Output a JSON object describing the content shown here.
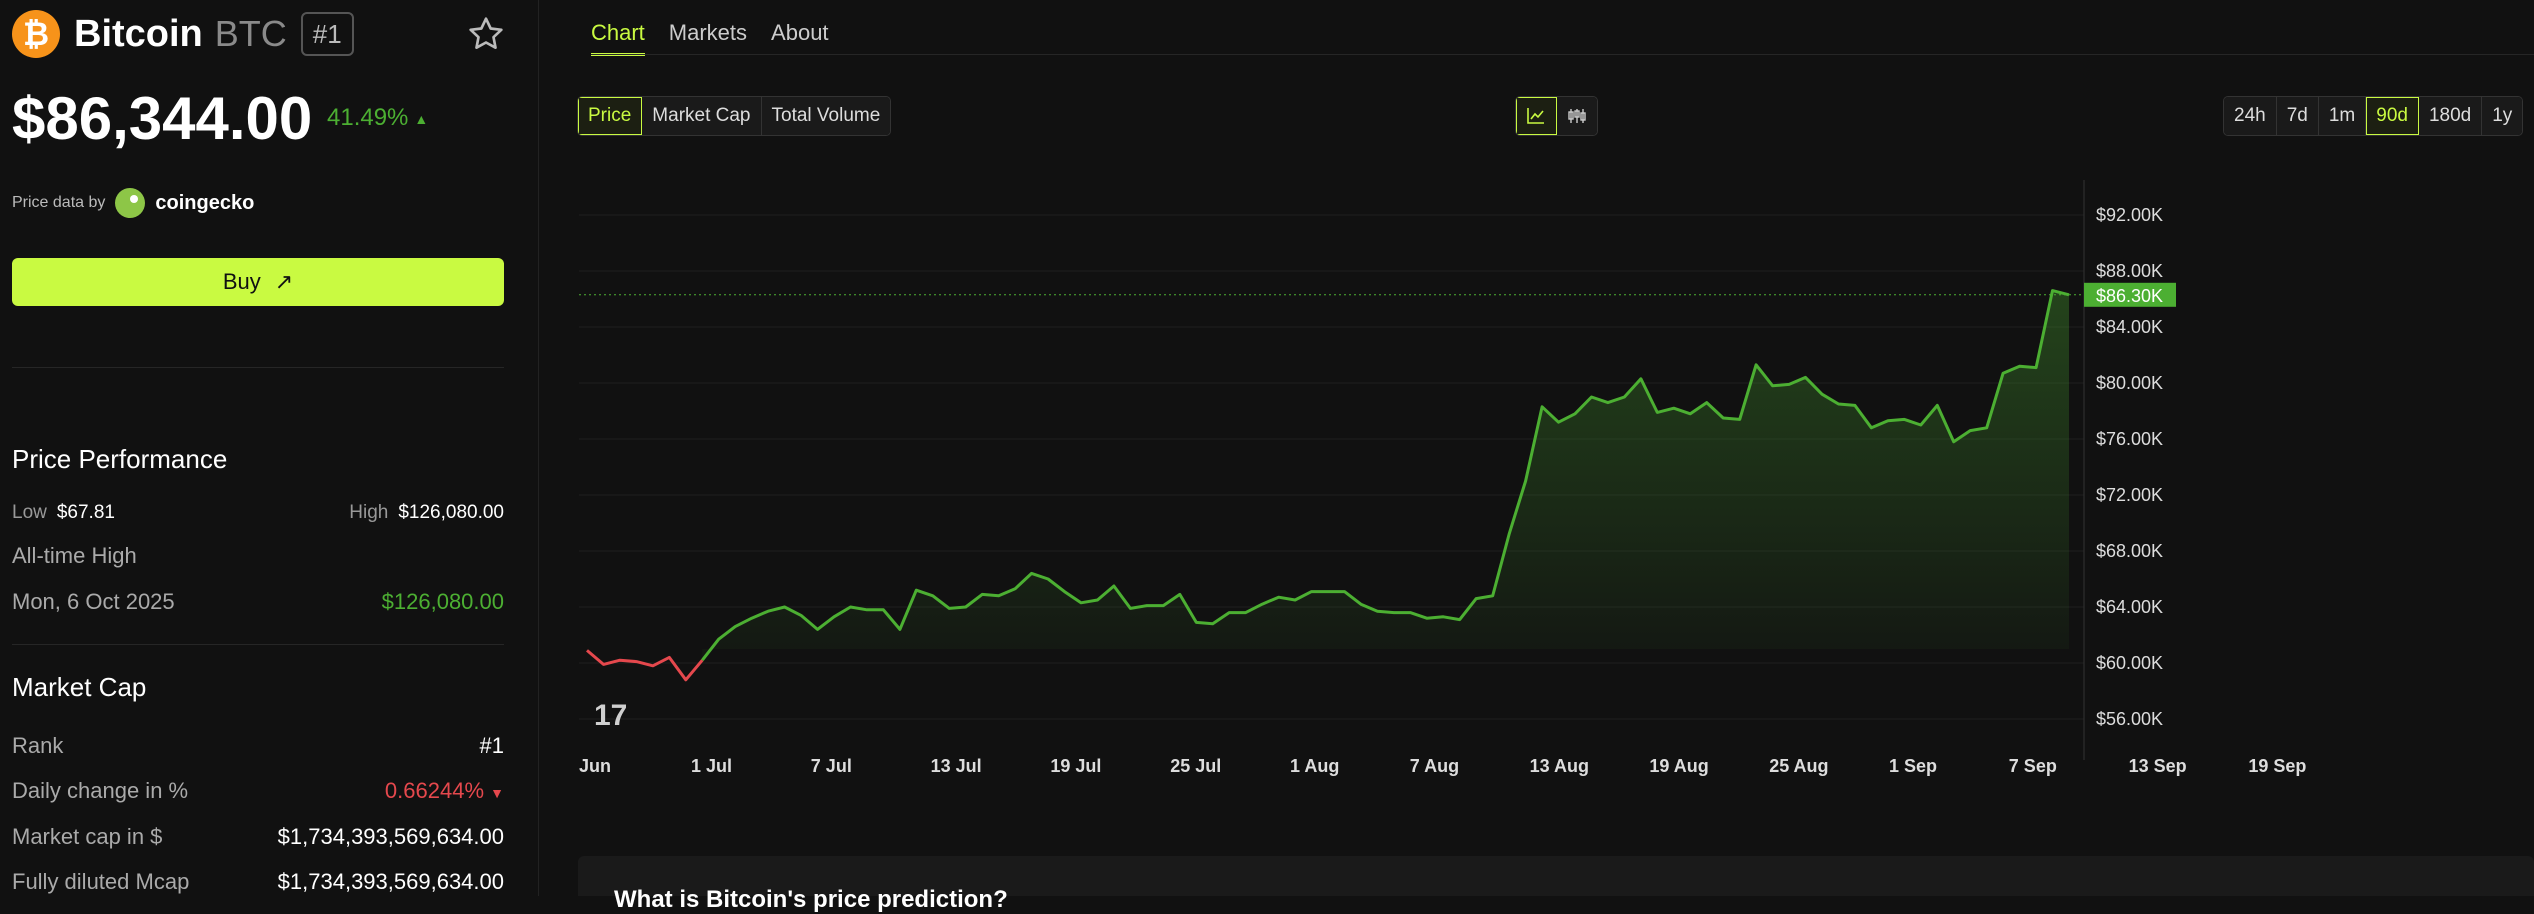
{
  "coin": {
    "name": "Bitcoin",
    "symbol": "BTC",
    "rank_badge": "#1",
    "logo_glyph": "₿",
    "price": "$86,344.00",
    "change": "41.49%",
    "change_arrow": "▲",
    "price_by_label": "Price data by",
    "provider": "coingecko",
    "buy_label": "Buy",
    "buy_icon": "↗"
  },
  "performance": {
    "title": "Price Performance",
    "low_label": "Low",
    "low_value": "$67.81",
    "high_label": "High",
    "high_value": "$126,080.00",
    "ath_label": "All-time High",
    "ath_date": "Mon, 6 Oct 2025",
    "ath_value": "$126,080.00"
  },
  "market_cap": {
    "title": "Market Cap",
    "rows": [
      {
        "label": "Rank",
        "value": "#1"
      },
      {
        "label": "Daily change in %",
        "value": "0.66244%",
        "arrow": "▼"
      },
      {
        "label": "Market cap in $",
        "value": "$1,734,393,569,634.00"
      },
      {
        "label": "Fully diluted Mcap",
        "value": "$1,734,393,569,634.00"
      }
    ]
  },
  "tabs": [
    "Chart",
    "Markets",
    "About"
  ],
  "metric_buttons": [
    "Price",
    "Market Cap",
    "Total Volume"
  ],
  "chart_style_icons": [
    "line-chart-icon",
    "candlestick-icon"
  ],
  "range_buttons": [
    "24h",
    "7d",
    "1m",
    "90d",
    "180d",
    "1y"
  ],
  "active_range": "90d",
  "bottom_heading": "What is Bitcoin's price prediction?",
  "colors": {
    "accent": "#c9fa41",
    "up": "#4caf32",
    "down": "#e5484d",
    "btc_orange": "#f7931a"
  },
  "chart_data": {
    "type": "area",
    "x_ticks": [
      "Jun",
      "1 Jul",
      "7 Jul",
      "13 Jul",
      "19 Jul",
      "25 Jul",
      "1 Aug",
      "7 Aug",
      "13 Aug",
      "19 Aug",
      "25 Aug",
      "1 Sep",
      "7 Sep",
      "13 Sep",
      "19 Sep"
    ],
    "y_ticks": [
      "$56.00K",
      "$60.00K",
      "$64.00K",
      "$68.00K",
      "$72.00K",
      "$76.00K",
      "$80.00K",
      "$84.00K",
      "$88.00K",
      "$92.00K"
    ],
    "ylim": [
      54500,
      94500
    ],
    "current_label": "$86.30K",
    "current_value": 86300,
    "grid": true,
    "values": [
      60900,
      59900,
      60200,
      60100,
      59800,
      60400,
      58800,
      60200,
      61700,
      62600,
      63200,
      63700,
      64000,
      63400,
      62400,
      63300,
      64000,
      63800,
      63800,
      62400,
      65200,
      64800,
      63900,
      64000,
      64900,
      64800,
      65300,
      66400,
      66000,
      65100,
      64300,
      64500,
      65500,
      63900,
      64100,
      64100,
      64900,
      62900,
      62800,
      63600,
      63600,
      64200,
      64700,
      64500,
      65100,
      65100,
      65100,
      64200,
      63700,
      63600,
      63600,
      63200,
      63300,
      63100,
      64600,
      64800,
      69200,
      73000,
      78300,
      77200,
      77800,
      79000,
      78600,
      79000,
      80300,
      77900,
      78200,
      77800,
      78600,
      77500,
      77400,
      81300,
      79800,
      79900,
      80400,
      79200,
      78500,
      78400,
      76800,
      77300,
      77400,
      77000,
      78400,
      75800,
      76600,
      76800,
      80700,
      81200,
      81100,
      86600,
      86300
    ]
  }
}
